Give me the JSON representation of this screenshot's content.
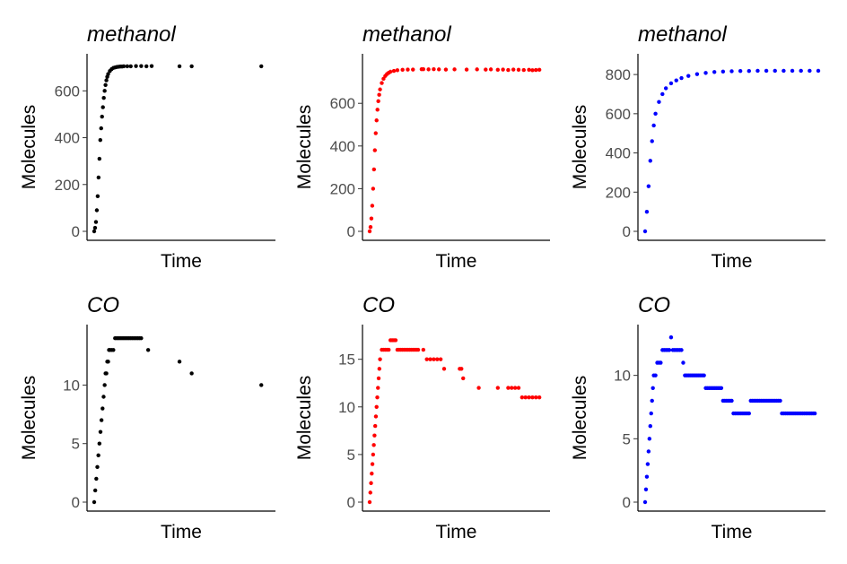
{
  "chart_data": [
    {
      "type": "scatter",
      "title": "methanol",
      "xlabel": "Time",
      "ylabel": "Molecules",
      "ylim": [
        0,
        720
      ],
      "yticks": [
        0,
        200,
        400,
        600
      ],
      "xlim": [
        0,
        1
      ],
      "color": "#000000",
      "x": [
        0,
        0.005,
        0.01,
        0.015,
        0.02,
        0.025,
        0.03,
        0.035,
        0.04,
        0.045,
        0.05,
        0.055,
        0.06,
        0.065,
        0.07,
        0.075,
        0.08,
        0.09,
        0.1,
        0.11,
        0.12,
        0.13,
        0.14,
        0.15,
        0.16,
        0.17,
        0.19,
        0.21,
        0.24,
        0.27,
        0.3,
        0.33,
        0.49,
        0.56,
        0.96
      ],
      "y": [
        0,
        15,
        40,
        90,
        150,
        230,
        310,
        390,
        440,
        490,
        530,
        570,
        600,
        625,
        645,
        660,
        672,
        685,
        693,
        698,
        700,
        702,
        703,
        704,
        704,
        705,
        705,
        705,
        706,
        706,
        705,
        706,
        705,
        705,
        705
      ]
    },
    {
      "type": "scatter",
      "title": "methanol",
      "xlabel": "Time",
      "ylabel": "Molecules",
      "ylim": [
        0,
        790
      ],
      "yticks": [
        0,
        200,
        400,
        600
      ],
      "xlim": [
        0,
        1
      ],
      "color": "#ff0000",
      "x": [
        0,
        0.005,
        0.01,
        0.015,
        0.02,
        0.025,
        0.03,
        0.035,
        0.04,
        0.045,
        0.05,
        0.055,
        0.06,
        0.07,
        0.08,
        0.09,
        0.1,
        0.11,
        0.12,
        0.14,
        0.16,
        0.19,
        0.22,
        0.25,
        0.3,
        0.31,
        0.34,
        0.37,
        0.4,
        0.44,
        0.49,
        0.56,
        0.62,
        0.67,
        0.7,
        0.74,
        0.77,
        0.8,
        0.83,
        0.86,
        0.89,
        0.92,
        0.94,
        0.96,
        0.98
      ],
      "y": [
        0,
        20,
        60,
        120,
        200,
        290,
        380,
        460,
        520,
        570,
        610,
        640,
        665,
        695,
        715,
        728,
        737,
        743,
        748,
        752,
        755,
        757,
        758,
        758,
        760,
        760,
        759,
        760,
        759,
        758,
        759,
        758,
        759,
        758,
        759,
        757,
        758,
        756,
        758,
        757,
        756,
        757,
        755,
        756,
        757
      ]
    },
    {
      "type": "scatter",
      "title": "methanol",
      "xlabel": "Time",
      "ylabel": "Molecules",
      "ylim": [
        0,
        860
      ],
      "yticks": [
        0,
        200,
        400,
        600,
        800
      ],
      "xlim": [
        0,
        1
      ],
      "color": "#0000ff",
      "x": [
        0,
        0.01,
        0.02,
        0.03,
        0.04,
        0.05,
        0.06,
        0.08,
        0.1,
        0.12,
        0.15,
        0.18,
        0.21,
        0.25,
        0.3,
        0.35,
        0.4,
        0.45,
        0.5,
        0.55,
        0.6,
        0.65,
        0.7,
        0.75,
        0.8,
        0.85,
        0.9,
        0.95,
        1.0
      ],
      "y": [
        0,
        100,
        230,
        360,
        460,
        540,
        600,
        660,
        700,
        730,
        755,
        770,
        782,
        793,
        802,
        808,
        813,
        815,
        817,
        818,
        818,
        819,
        819,
        819,
        819,
        819,
        819,
        819,
        819
      ]
    },
    {
      "type": "scatter",
      "title": "CO",
      "xlabel": "Time",
      "ylabel": "Molecules",
      "ylim": [
        0,
        14.4
      ],
      "yticks": [
        0,
        5,
        10
      ],
      "xlim": [
        0,
        1
      ],
      "color": "#000000",
      "x": [
        0,
        0.006,
        0.012,
        0.018,
        0.024,
        0.03,
        0.036,
        0.042,
        0.048,
        0.054,
        0.06,
        0.065,
        0.07,
        0.075,
        0.08,
        0.085,
        0.09,
        0.1,
        0.11,
        0.12,
        0.13,
        0.14,
        0.15,
        0.16,
        0.17,
        0.18,
        0.19,
        0.2,
        0.21,
        0.22,
        0.23,
        0.24,
        0.25,
        0.26,
        0.27,
        0.31,
        0.49,
        0.56,
        0.96
      ],
      "y": [
        0,
        1,
        2,
        3,
        4,
        5,
        6,
        7,
        8,
        9,
        10,
        11,
        11,
        12,
        12,
        13,
        13,
        13,
        13,
        14,
        14,
        14,
        14,
        14,
        14,
        14,
        14,
        14,
        14,
        14,
        14,
        14,
        14,
        14,
        14,
        13,
        12,
        11,
        10
      ]
    },
    {
      "type": "scatter",
      "title": "CO",
      "xlabel": "Time",
      "ylabel": "Molecules",
      "ylim": [
        0,
        17.7
      ],
      "yticks": [
        0,
        5,
        10,
        15
      ],
      "xlim": [
        0,
        1
      ],
      "color": "#ff0000",
      "x": [
        0,
        0.004,
        0.008,
        0.012,
        0.016,
        0.02,
        0.024,
        0.028,
        0.032,
        0.036,
        0.04,
        0.044,
        0.048,
        0.052,
        0.056,
        0.06,
        0.07,
        0.08,
        0.09,
        0.1,
        0.11,
        0.12,
        0.13,
        0.14,
        0.15,
        0.16,
        0.17,
        0.18,
        0.19,
        0.2,
        0.21,
        0.22,
        0.23,
        0.24,
        0.25,
        0.26,
        0.27,
        0.28,
        0.31,
        0.33,
        0.35,
        0.37,
        0.39,
        0.41,
        0.43,
        0.52,
        0.53,
        0.54,
        0.63,
        0.74,
        0.8,
        0.82,
        0.84,
        0.86,
        0.88,
        0.9,
        0.92,
        0.94,
        0.96,
        0.98
      ],
      "y": [
        0,
        1,
        2,
        3,
        4,
        5,
        6,
        7,
        8,
        9,
        10,
        11,
        12,
        13,
        14,
        15,
        16,
        16,
        16,
        16,
        16,
        17,
        17,
        17,
        17,
        16,
        16,
        16,
        16,
        16,
        16,
        16,
        16,
        16,
        16,
        16,
        16,
        16,
        16,
        15,
        15,
        15,
        15,
        15,
        14,
        14,
        14,
        13,
        12,
        12,
        12,
        12,
        12,
        12,
        11,
        11,
        11,
        11,
        11,
        11
      ]
    },
    {
      "type": "scatter",
      "title": "CO",
      "xlabel": "Time",
      "ylabel": "Molecules",
      "ylim": [
        0,
        13.3
      ],
      "yticks": [
        0,
        5,
        10
      ],
      "xlim": [
        0,
        1
      ],
      "color": "#0000ff",
      "x": [
        0,
        0.005,
        0.01,
        0.015,
        0.02,
        0.025,
        0.03,
        0.035,
        0.04,
        0.045,
        0.05,
        0.06,
        0.07,
        0.08,
        0.09,
        0.1,
        0.11,
        0.12,
        0.13,
        0.14,
        0.15,
        0.16,
        0.17,
        0.18,
        0.19,
        0.2,
        0.21,
        0.22,
        0.23,
        0.24,
        0.25,
        0.26,
        0.27,
        0.28,
        0.29,
        0.3,
        0.31,
        0.32,
        0.33,
        0.34,
        0.35,
        0.36,
        0.37,
        0.38,
        0.39,
        0.4,
        0.41,
        0.42,
        0.43,
        0.44,
        0.45,
        0.46,
        0.47,
        0.48,
        0.49,
        0.5,
        0.51,
        0.52,
        0.53,
        0.54,
        0.55,
        0.56,
        0.57,
        0.58,
        0.59,
        0.6,
        0.61,
        0.62,
        0.63,
        0.64,
        0.65,
        0.66,
        0.67,
        0.68,
        0.69,
        0.7,
        0.71,
        0.72,
        0.73,
        0.74,
        0.75,
        0.76,
        0.77,
        0.78,
        0.79,
        0.8,
        0.81,
        0.82,
        0.83,
        0.84,
        0.85,
        0.86,
        0.87,
        0.88,
        0.89,
        0.9,
        0.91,
        0.92,
        0.93,
        0.94,
        0.95,
        0.96,
        0.97,
        0.98
      ],
      "y": [
        0,
        1,
        2,
        3,
        4,
        5,
        6,
        7,
        8,
        9,
        10,
        10,
        11,
        11,
        11,
        12,
        12,
        12,
        12,
        12,
        13,
        12,
        12,
        12,
        12,
        12,
        12,
        11,
        10,
        10,
        10,
        10,
        10,
        10,
        10,
        10,
        10,
        10,
        10,
        10,
        9,
        9,
        9,
        9,
        9,
        9,
        9,
        9,
        9,
        9,
        8,
        8,
        8,
        8,
        8,
        8,
        7,
        7,
        7,
        7,
        7,
        7,
        7,
        7,
        7,
        7,
        8,
        8,
        8,
        8,
        8,
        8,
        8,
        8,
        8,
        8,
        8,
        8,
        8,
        8,
        8,
        8,
        8,
        8,
        7,
        7,
        7,
        7,
        7,
        7,
        7,
        7,
        7,
        7,
        7,
        7,
        7,
        7,
        7,
        7,
        7,
        7,
        7,
        7
      ]
    }
  ]
}
